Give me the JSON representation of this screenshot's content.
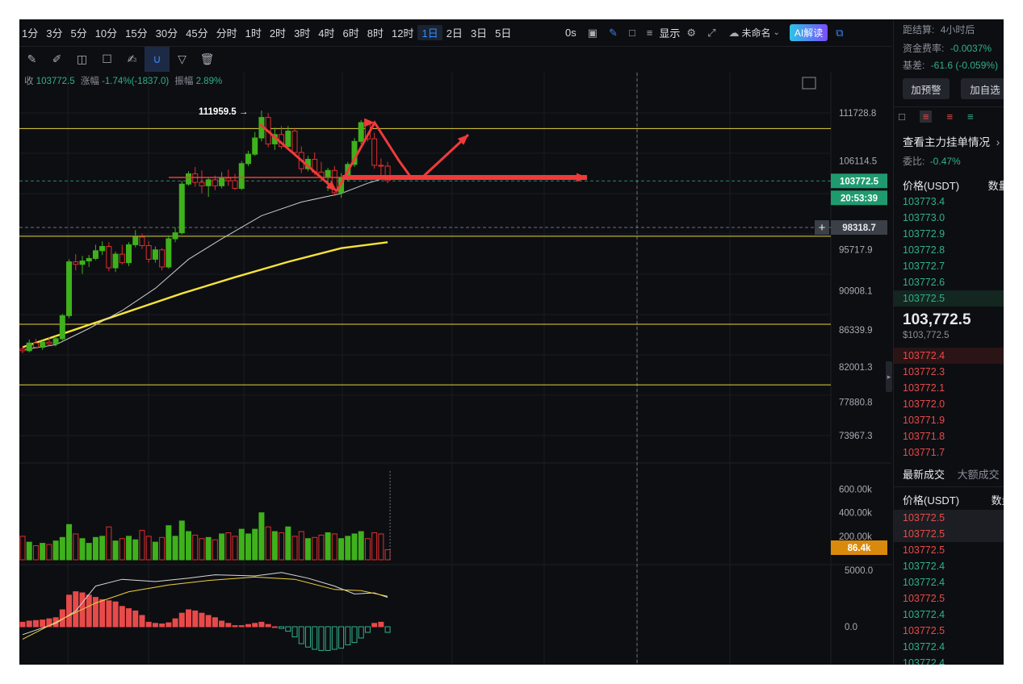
{
  "toolbar": {
    "timeframes": [
      "1分",
      "3分",
      "5分",
      "10分",
      "15分",
      "30分",
      "45分",
      "分时",
      "1时",
      "2时",
      "3时",
      "4时",
      "6时",
      "8时",
      "12时",
      "1日",
      "2日",
      "3日",
      "5日"
    ],
    "active_timeframe": "1日",
    "seconds_label": "0s",
    "display_label": "显示",
    "layout_name": "未命名",
    "ai_button": "AI解读"
  },
  "drawing_tools": [
    "ruler-icon",
    "pen-icon",
    "candles-icon",
    "note-icon",
    "edit-icon",
    "magnet-icon",
    "filter-icon",
    "trash-icon"
  ],
  "info_line": {
    "close_label": "收",
    "close_value": "103772.5",
    "change_label": "涨幅",
    "change_value": "-1.74%(-1837.0)",
    "amplitude_label": "振幅",
    "amplitude_value": "2.89%"
  },
  "chart_data": {
    "type": "candlestick",
    "price_ticks": [
      "111728.8",
      "106114.5",
      "95717.9",
      "90908.1",
      "86339.9",
      "82001.3",
      "77880.8",
      "73967.3"
    ],
    "volume_ticks": [
      "600.00k",
      "400.00k",
      "200.00k"
    ],
    "macd_ticks": [
      "5000.0",
      "0.0"
    ],
    "high_annotation": "111959.5 →",
    "current_price": "103772.5",
    "countdown": "20:53:39",
    "crosshair_price": "98318.7",
    "current_volume": "86.4k",
    "horizontal_levels": [
      109900,
      97300,
      87000,
      79900
    ],
    "candles": [
      [
        84100,
        84400,
        83600,
        83900
      ],
      [
        83900,
        85200,
        83700,
        84800
      ],
      [
        84800,
        85300,
        84200,
        84300
      ],
      [
        84300,
        85100,
        84000,
        84900
      ],
      [
        84900,
        85500,
        84500,
        84700
      ],
      [
        84700,
        85600,
        84400,
        85300
      ],
      [
        85300,
        88200,
        85100,
        88000
      ],
      [
        88000,
        94600,
        87700,
        94300
      ],
      [
        94300,
        95200,
        93300,
        94000
      ],
      [
        94000,
        95000,
        92900,
        94400
      ],
      [
        94400,
        95100,
        93700,
        94700
      ],
      [
        94700,
        96300,
        94500,
        95600
      ],
      [
        95600,
        96700,
        95100,
        96100
      ],
      [
        96100,
        96600,
        93200,
        93600
      ],
      [
        93600,
        95500,
        93100,
        95200
      ],
      [
        95200,
        96300,
        94000,
        94200
      ],
      [
        94200,
        96600,
        93800,
        96300
      ],
      [
        96300,
        98000,
        96000,
        97200
      ],
      [
        97200,
        97600,
        95800,
        96200
      ],
      [
        96200,
        96700,
        94200,
        94600
      ],
      [
        94600,
        96100,
        94200,
        95700
      ],
      [
        95700,
        95900,
        93300,
        93700
      ],
      [
        93700,
        97400,
        93500,
        97000
      ],
      [
        97000,
        98300,
        96600,
        97700
      ],
      [
        97700,
        103800,
        97500,
        103400
      ],
      [
        103400,
        104900,
        103200,
        104600
      ],
      [
        104600,
        105400,
        103100,
        103600
      ],
      [
        103600,
        105000,
        102300,
        103200
      ],
      [
        103200,
        104200,
        101900,
        103900
      ],
      [
        103900,
        104400,
        102700,
        103200
      ],
      [
        103200,
        104800,
        102900,
        104100
      ],
      [
        104100,
        105100,
        103200,
        103800
      ],
      [
        103800,
        104600,
        102700,
        102900
      ],
      [
        102900,
        106100,
        102700,
        105800
      ],
      [
        105800,
        107300,
        105500,
        106900
      ],
      [
        106900,
        109500,
        106700,
        108800
      ],
      [
        108800,
        112000,
        108400,
        111200
      ],
      [
        111200,
        111700,
        107700,
        108100
      ],
      [
        108100,
        110000,
        107400,
        109200
      ],
      [
        109200,
        110200,
        107500,
        107800
      ],
      [
        107800,
        110200,
        107400,
        109600
      ],
      [
        109600,
        109900,
        106700,
        107100
      ],
      [
        107100,
        107800,
        104700,
        105200
      ],
      [
        105200,
        106700,
        104900,
        106300
      ],
      [
        106300,
        107100,
        104500,
        104800
      ],
      [
        104800,
        106000,
        103800,
        104200
      ],
      [
        104200,
        105300,
        102600,
        105000
      ],
      [
        105000,
        105500,
        102000,
        102400
      ],
      [
        102400,
        104700,
        101800,
        104200
      ],
      [
        104200,
        106000,
        103700,
        105700
      ],
      [
        105700,
        108800,
        105400,
        108400
      ],
      [
        108400,
        110900,
        108100,
        110600
      ],
      [
        110600,
        110900,
        108400,
        108700
      ],
      [
        108700,
        109400,
        105200,
        105600
      ],
      [
        105600,
        106400,
        104400,
        105500
      ],
      [
        105500,
        106000,
        103500,
        103800
      ]
    ],
    "volumes": [
      200,
      150,
      120,
      140,
      130,
      160,
      190,
      300,
      220,
      180,
      140,
      190,
      200,
      280,
      160,
      180,
      200,
      170,
      250,
      200,
      150,
      190,
      290,
      200,
      330,
      240,
      210,
      180,
      190,
      170,
      220,
      230,
      200,
      260,
      220,
      260,
      400,
      280,
      240,
      230,
      280,
      200,
      240,
      180,
      190,
      210,
      230,
      220,
      180,
      200,
      220,
      240,
      180,
      230,
      220,
      86
    ],
    "ma_slow": [
      [
        0,
        84300
      ],
      [
        8,
        86400
      ],
      [
        16,
        88500
      ],
      [
        24,
        90600
      ],
      [
        32,
        92500
      ],
      [
        40,
        94300
      ],
      [
        48,
        95900
      ],
      [
        55,
        96600
      ]
    ],
    "ma_fast": [
      [
        0,
        84000
      ],
      [
        5,
        84600
      ],
      [
        10,
        86500
      ],
      [
        15,
        88600
      ],
      [
        20,
        91200
      ],
      [
        25,
        94600
      ],
      [
        30,
        97000
      ],
      [
        36,
        99700
      ],
      [
        42,
        101300
      ],
      [
        48,
        102300
      ],
      [
        52,
        103500
      ],
      [
        55,
        104200
      ]
    ],
    "macd_hist": [
      400,
      500,
      550,
      600,
      700,
      800,
      1500,
      2800,
      3100,
      3000,
      2800,
      2600,
      2400,
      2300,
      2200,
      1800,
      1600,
      1400,
      1000,
      400,
      300,
      250,
      350,
      700,
      1200,
      1500,
      1400,
      1200,
      1000,
      800,
      500,
      300,
      100,
      100,
      200,
      300,
      400,
      200,
      0,
      -150,
      -400,
      -900,
      -1500,
      -1800,
      -2000,
      -2100,
      -2100,
      -2000,
      -1900,
      -1600,
      -1400,
      -1000,
      -500,
      300,
      400,
      -500
    ],
    "macd_dif": [
      [
        0,
        -700
      ],
      [
        5,
        300
      ],
      [
        8,
        1400
      ],
      [
        11,
        3600
      ],
      [
        15,
        4200
      ],
      [
        20,
        4000
      ],
      [
        25,
        4300
      ],
      [
        29,
        4600
      ],
      [
        35,
        4500
      ],
      [
        39,
        4800
      ],
      [
        43,
        4300
      ],
      [
        47,
        3600
      ],
      [
        50,
        2900
      ],
      [
        53,
        3000
      ],
      [
        55,
        2600
      ]
    ],
    "macd_dea": [
      [
        0,
        -1100
      ],
      [
        6,
        700
      ],
      [
        11,
        2100
      ],
      [
        16,
        3100
      ],
      [
        22,
        3700
      ],
      [
        28,
        4100
      ],
      [
        35,
        4400
      ],
      [
        41,
        4200
      ],
      [
        47,
        3300
      ],
      [
        51,
        3200
      ],
      [
        55,
        2700
      ]
    ]
  },
  "right_panel": {
    "settlement_label": "距结算:",
    "settlement_value": "4小时后",
    "funding_label": "资金费率:",
    "funding_value": "-0.0037%",
    "basis_label": "基差:",
    "basis_value": "-61.6 (-0.059%)",
    "add_alert": "加预警",
    "add_watch": "加自选",
    "orderbook_title": "查看主力挂单情况",
    "ratio_label": "委比:",
    "ratio_value": "-0.47%",
    "price_header": "价格(USDT)",
    "qty_header": "数量",
    "asks": [
      "103773.4",
      "103773.0",
      "103772.9",
      "103772.8",
      "103772.7",
      "103772.6",
      "103772.5"
    ],
    "last_price": "103,772.5",
    "last_price_usd": "$103,772.5",
    "bids": [
      "103772.4",
      "103772.3",
      "103772.1",
      "103772.0",
      "103771.9",
      "103771.8",
      "103771.7"
    ],
    "trades_tab": "最新成交",
    "big_trades_tab": "大额成交",
    "trades_price_header": "价格(USDT)",
    "trades_qty_header": "数量",
    "trades": [
      {
        "p": "103772.5",
        "side": "sell"
      },
      {
        "p": "103772.5",
        "side": "sell"
      },
      {
        "p": "103772.5",
        "side": "sell"
      },
      {
        "p": "103772.4",
        "side": "buy"
      },
      {
        "p": "103772.4",
        "side": "buy"
      },
      {
        "p": "103772.5",
        "side": "sell"
      },
      {
        "p": "103772.4",
        "side": "buy"
      },
      {
        "p": "103772.5",
        "side": "sell"
      },
      {
        "p": "103772.4",
        "side": "buy"
      },
      {
        "p": "103772.4",
        "side": "buy"
      }
    ]
  }
}
